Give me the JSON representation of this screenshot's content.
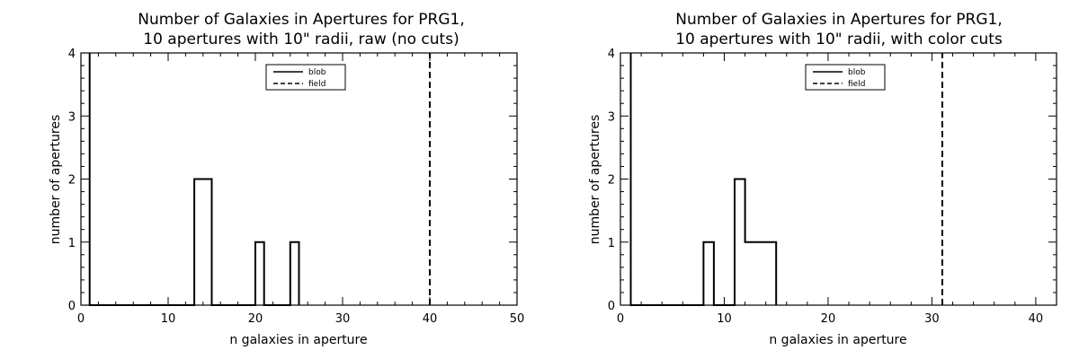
{
  "chart_data": [
    {
      "type": "step",
      "title_lines": [
        "Number of Galaxies in Apertures for PRG1,",
        "10 apertures with 10\" radii, raw (no cuts)"
      ],
      "xlabel": "n galaxies in aperture",
      "ylabel": "number of apertures",
      "xlim": [
        0,
        50
      ],
      "ylim": [
        0,
        4
      ],
      "xticks": [
        0,
        10,
        20,
        30,
        40,
        50
      ],
      "yticks": [
        0,
        1,
        2,
        3,
        4
      ],
      "legend": {
        "placement": "top-center",
        "entries": [
          {
            "label": "blob",
            "style": "solid"
          },
          {
            "label": "field",
            "style": "dashed"
          }
        ]
      },
      "series": [
        {
          "name": "blob",
          "style": "solid",
          "x": [
            1,
            1,
            13,
            13,
            15,
            15,
            20,
            20,
            21,
            21,
            24,
            24,
            25,
            25
          ],
          "y": [
            4,
            0,
            0,
            2,
            2,
            0,
            0,
            1,
            1,
            0,
            0,
            1,
            1,
            0
          ]
        },
        {
          "name": "field",
          "style": "dashed",
          "x": [
            40,
            40
          ],
          "y": [
            0,
            4
          ]
        }
      ]
    },
    {
      "type": "step",
      "title_lines": [
        "Number of Galaxies in Apertures for PRG1,",
        "10 apertures with 10\" radii, with color cuts"
      ],
      "xlabel": "n galaxies in aperture",
      "ylabel": "number of apertures",
      "xlim": [
        0,
        42
      ],
      "ylim": [
        0,
        4
      ],
      "xticks": [
        0,
        10,
        20,
        30,
        40
      ],
      "yticks": [
        0,
        1,
        2,
        3,
        4
      ],
      "legend": {
        "placement": "top-center",
        "entries": [
          {
            "label": "blob",
            "style": "solid"
          },
          {
            "label": "field",
            "style": "dashed"
          }
        ]
      },
      "series": [
        {
          "name": "blob",
          "style": "solid",
          "x": [
            1,
            1,
            8,
            8,
            9,
            9,
            11,
            11,
            12,
            12,
            15,
            15
          ],
          "y": [
            4,
            0,
            0,
            1,
            1,
            0,
            0,
            2,
            2,
            1,
            1,
            0
          ]
        },
        {
          "name": "field",
          "style": "dashed",
          "x": [
            31,
            31
          ],
          "y": [
            0,
            4
          ]
        }
      ]
    }
  ]
}
